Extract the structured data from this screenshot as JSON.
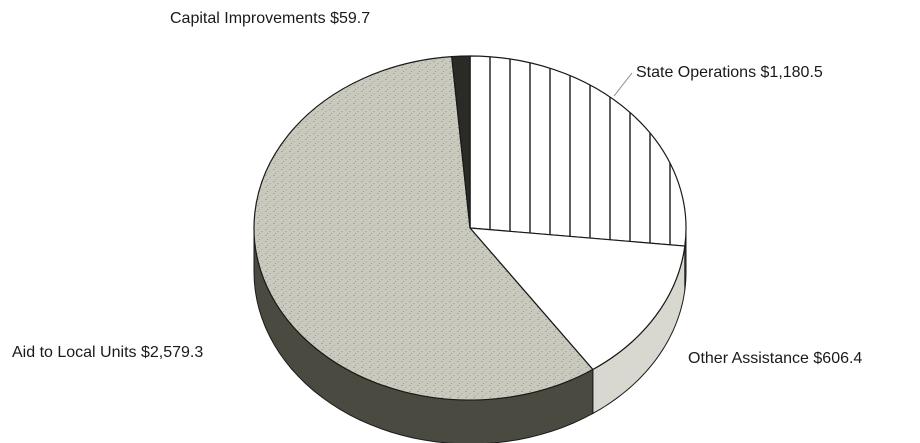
{
  "chart_data": {
    "type": "pie",
    "slices": [
      {
        "label": "State Operations",
        "value": 1180.5,
        "display": "State Operations $1,180.5",
        "fill": "hatch"
      },
      {
        "label": "Other Assistance",
        "value": 606.4,
        "display": "Other Assistance $606.4",
        "fill": "#ffffff"
      },
      {
        "label": "Aid to Local Units",
        "value": 2579.3,
        "display": "Aid to Local Units $2,579.3",
        "fill": "#c9c9bd"
      },
      {
        "label": "Capital Improvements",
        "value": 59.7,
        "display": "Capital Improvements $59.7",
        "fill": "#2a2a26"
      }
    ],
    "start": "12 o'clock",
    "direction": "clockwise",
    "style": "3d",
    "legend": "none"
  },
  "colors": {
    "background": "#ffffff",
    "outline": "#1a1a1a",
    "gray_top": "#c9c9bd",
    "gray_side": "#4a4a40"
  }
}
